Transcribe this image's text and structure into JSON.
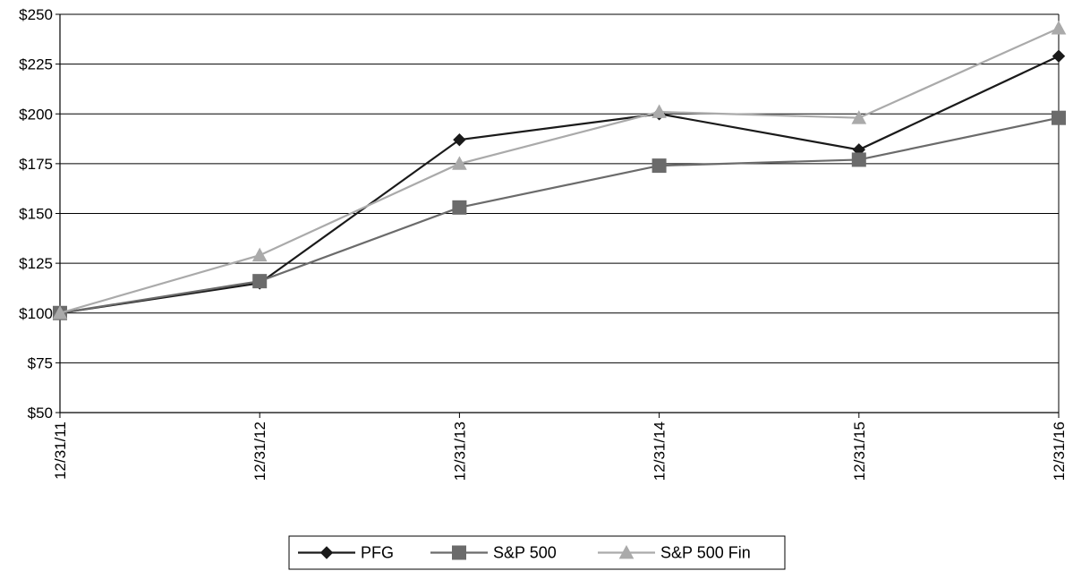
{
  "chart_data": {
    "type": "line",
    "title": "",
    "xlabel": "",
    "ylabel": "",
    "categories": [
      "12/31/11",
      "12/31/12",
      "12/31/13",
      "12/31/14",
      "12/31/15",
      "12/31/16"
    ],
    "ylim": [
      50,
      250
    ],
    "yticks": [
      50,
      75,
      100,
      125,
      150,
      175,
      200,
      225,
      250
    ],
    "ytick_labels": [
      "$50",
      "$75",
      "$100",
      "$125",
      "$150",
      "$175",
      "$200",
      "$225",
      "$250"
    ],
    "grid": "horizontal",
    "legend_position": "bottom-center",
    "series": [
      {
        "name": "PFG",
        "marker": "diamond",
        "color": "#1a1a1a",
        "values": [
          100,
          115,
          187,
          200,
          182,
          229
        ]
      },
      {
        "name": "S&P 500",
        "marker": "square",
        "color": "#6b6b6b",
        "values": [
          100,
          116,
          153,
          174,
          177,
          198
        ]
      },
      {
        "name": "S&P 500 Fin",
        "marker": "triangle",
        "color": "#aaaaaa",
        "values": [
          100,
          129,
          175,
          201,
          198,
          243
        ]
      }
    ]
  }
}
